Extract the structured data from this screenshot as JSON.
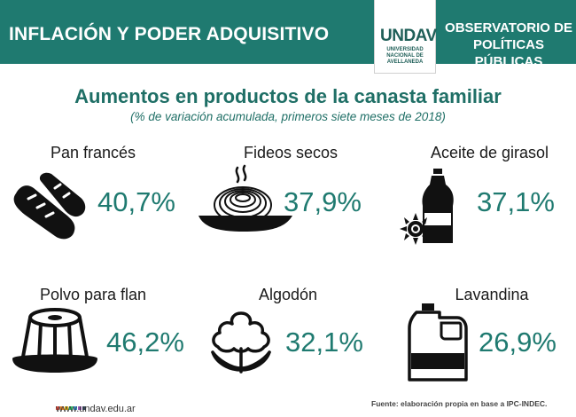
{
  "header": {
    "title": "INFLACIÓN Y PODER ADQUISITIVO",
    "logo_mark": "UNDAV",
    "logo_sub": [
      "UNIVERSIDAD",
      "NACIONAL DE",
      "AVELLANEDA"
    ],
    "right_title": [
      "OBSERVATORIO DE",
      "POLÍTICAS PÚBLICAS"
    ]
  },
  "title": "Aumentos en productos de la canasta familiar",
  "subtitle": "(% de variación acumulada, primeros siete meses de 2018)",
  "products": [
    {
      "name": "Pan francés",
      "value": "40,7%",
      "icon": "bread-icon"
    },
    {
      "name": "Fideos secos",
      "value": "37,9%",
      "icon": "pasta-icon"
    },
    {
      "name": "Aceite de girasol",
      "value": "37,1%",
      "icon": "oil-bottle-icon"
    },
    {
      "name": "Polvo para flan",
      "value": "46,2%",
      "icon": "flan-icon"
    },
    {
      "name": "Algodón",
      "value": "32,1%",
      "icon": "cotton-icon"
    },
    {
      "name": "Lavandina",
      "value": "26,9%",
      "icon": "bleach-icon"
    }
  ],
  "footer": {
    "url": "www.undav.edu.ar",
    "source": "Fuente: elaboración propia en base a IPC-INDEC.",
    "dot_colors": [
      "#e74c3c",
      "#e67e22",
      "#f1c40f",
      "#2ecc71",
      "#3498db",
      "#9b59b6",
      "#34495e"
    ]
  },
  "colors": {
    "accent": "#1f7a70",
    "title": "#1f6f66"
  }
}
